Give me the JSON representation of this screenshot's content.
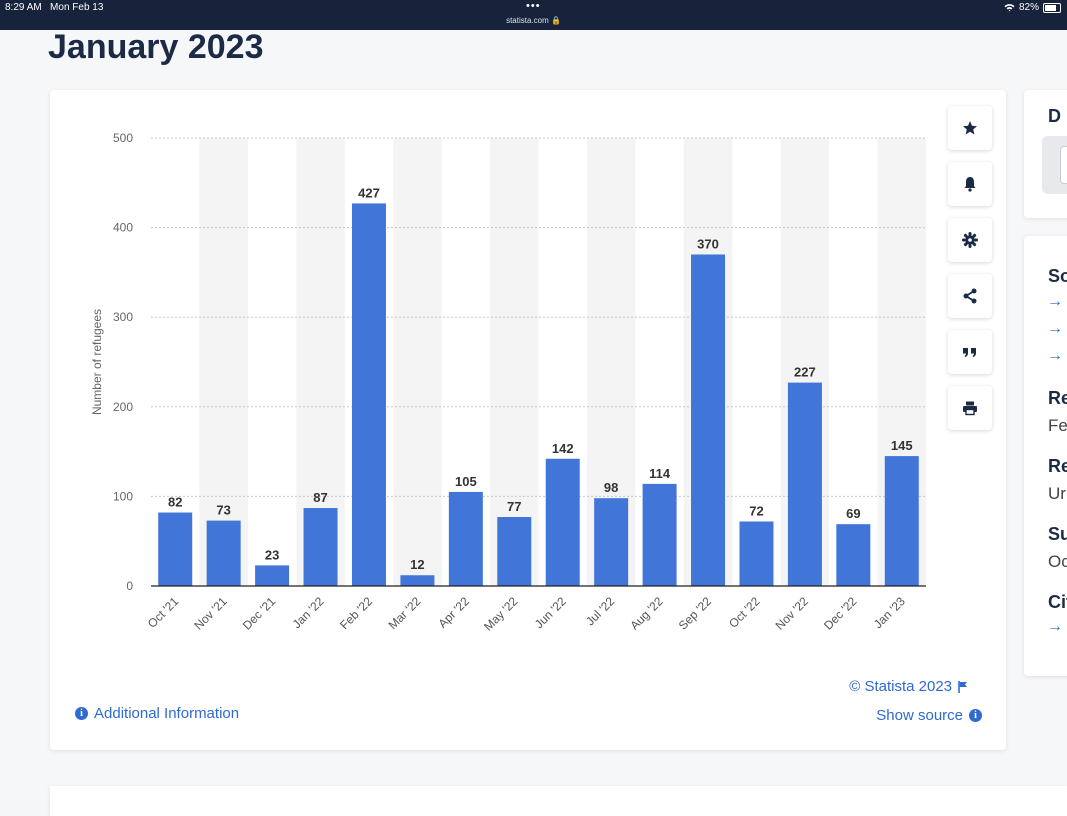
{
  "status_bar": {
    "time": "8:29 AM",
    "date": "Mon Feb 13",
    "url": "statista.com",
    "battery": "82%"
  },
  "page": {
    "title": "January 2023"
  },
  "toolbar": [
    "star-icon",
    "bell-icon",
    "gear-icon",
    "share-icon",
    "quote-icon",
    "print-icon"
  ],
  "sidebar_top": {
    "heading": "D"
  },
  "sidebar": {
    "source_heading": "So",
    "release_heading": "Re",
    "release_value": "Fe",
    "region_heading": "Re",
    "region_value": "Ur",
    "survey_heading": "Su",
    "survey_value": "Oc",
    "citation_heading": "Cit"
  },
  "footer": {
    "copyright": "© Statista 2023",
    "show_source": "Show source",
    "additional_info": "Additional Information"
  },
  "colors": {
    "bar": "#4275d8",
    "link": "#2e6bd1",
    "title": "#1c2b45"
  },
  "chart_data": {
    "type": "bar",
    "title": "",
    "xlabel": "",
    "ylabel": "Number of refugees",
    "ylim": [
      0,
      500
    ],
    "yticks": [
      0,
      100,
      200,
      300,
      400,
      500
    ],
    "categories": [
      "Oct '21",
      "Nov '21",
      "Dec '21",
      "Jan '22",
      "Feb '22",
      "Mar '22",
      "Apr '22",
      "May '22",
      "Jun '22",
      "Jul '22",
      "Aug '22",
      "Sep '22",
      "Oct '22",
      "Nov '22",
      "Dec '22",
      "Jan '23"
    ],
    "values": [
      82,
      73,
      23,
      87,
      427,
      12,
      105,
      77,
      142,
      98,
      114,
      370,
      72,
      227,
      69,
      145
    ]
  }
}
